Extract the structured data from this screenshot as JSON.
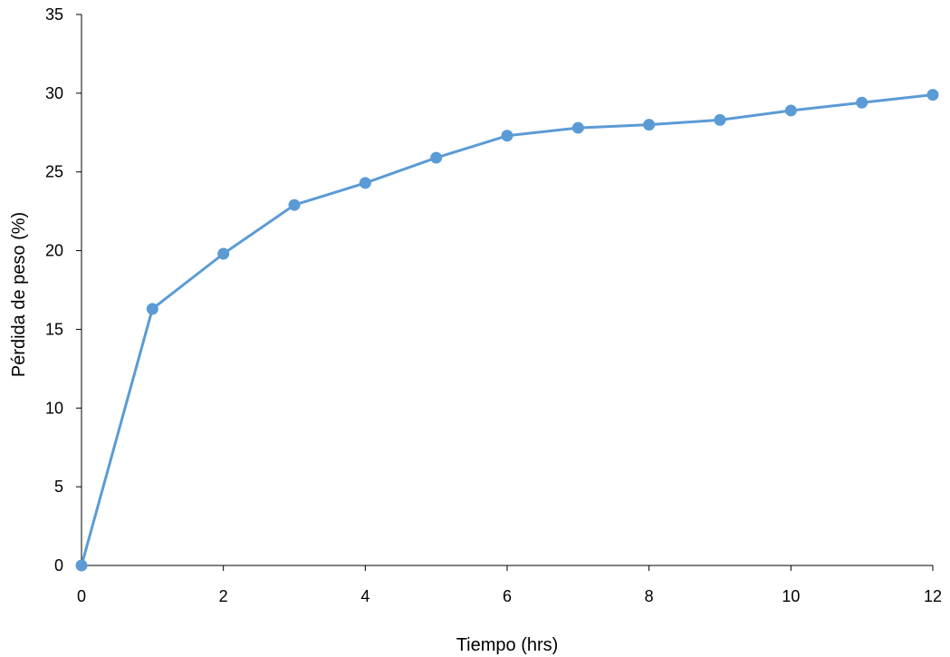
{
  "chart_data": {
    "type": "line",
    "title": "",
    "xlabel": "Tiempo (hrs)",
    "ylabel": "Pérdida de peso (%)",
    "xlim": [
      0,
      12
    ],
    "ylim": [
      0,
      35
    ],
    "xticks": [
      0,
      2,
      4,
      6,
      8,
      10,
      12
    ],
    "yticks": [
      0,
      5,
      10,
      15,
      20,
      25,
      30,
      35
    ],
    "grid": false,
    "legend": "none",
    "series": [
      {
        "x": [
          0,
          1,
          2,
          3,
          4,
          5,
          6,
          7,
          8,
          9,
          10,
          11,
          12
        ],
        "y": [
          0,
          16.3,
          19.8,
          22.9,
          24.3,
          25.9,
          27.3,
          27.8,
          28.0,
          28.3,
          28.9,
          29.4,
          29.9
        ],
        "color": "#5b9bd5"
      }
    ]
  }
}
